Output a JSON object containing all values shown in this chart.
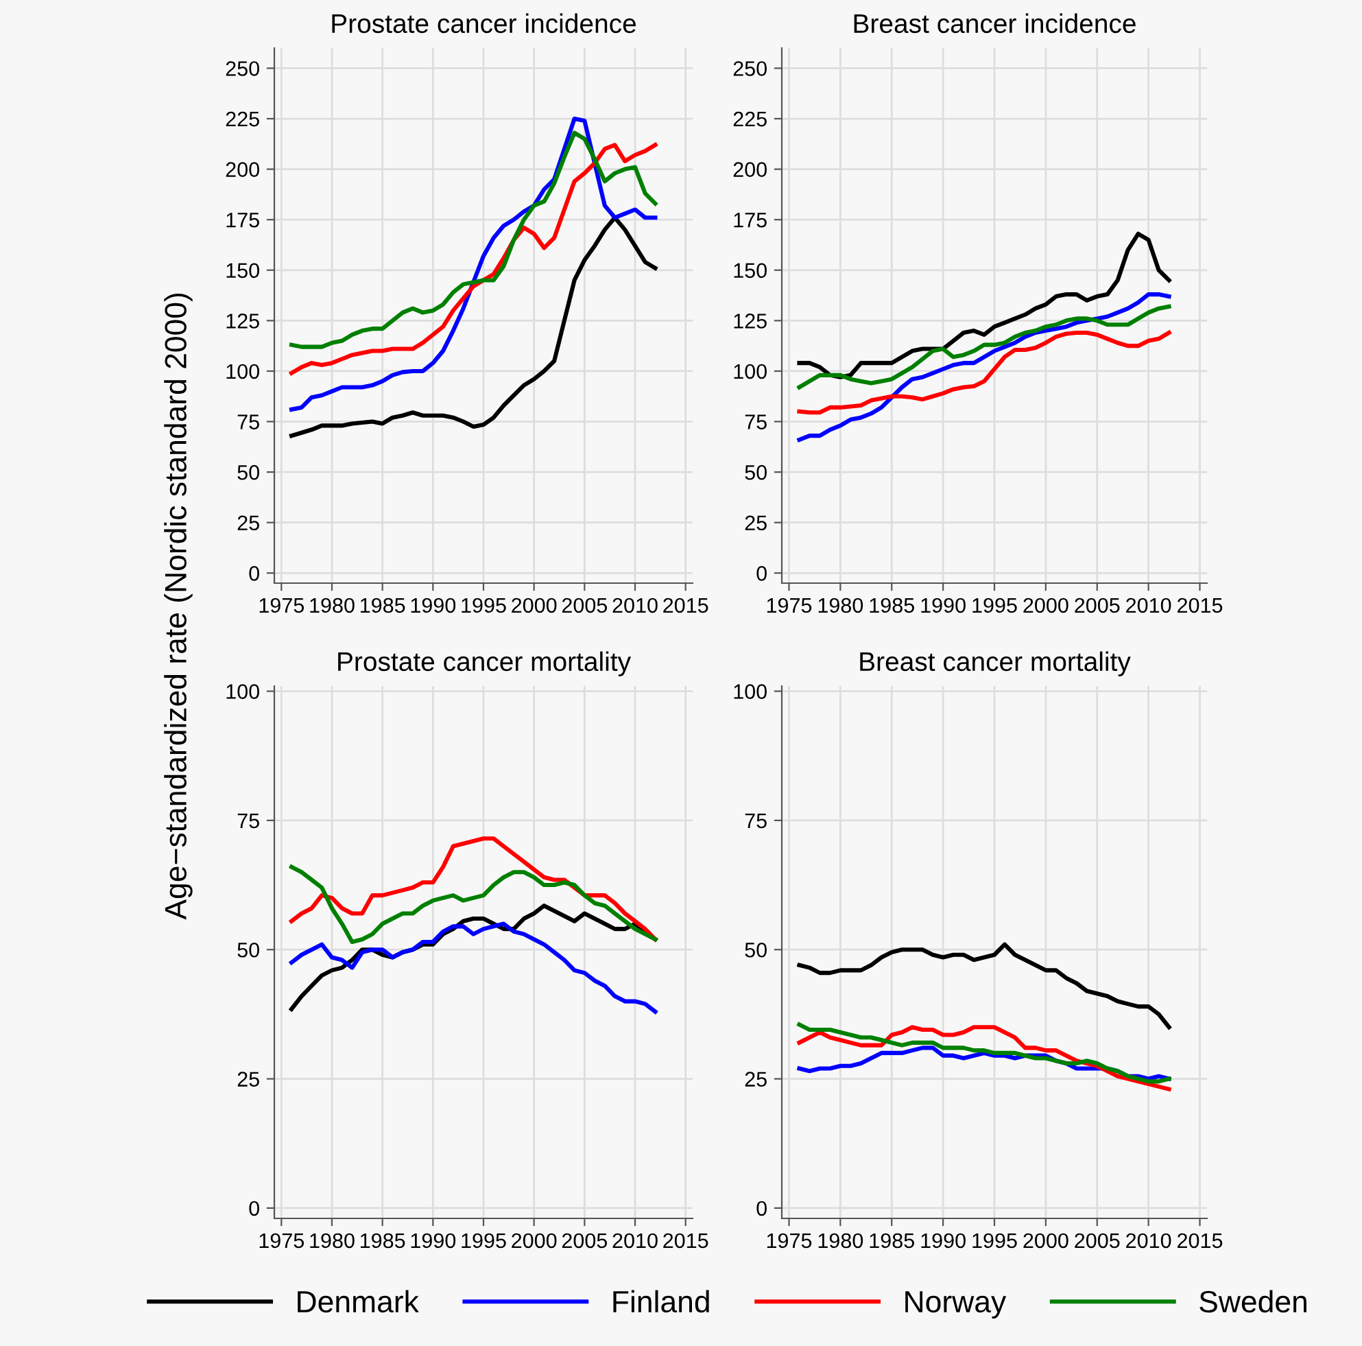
{
  "chart_data": [
    {
      "type": "line",
      "title": "Prostate cancer incidence",
      "legend": "bottom",
      "ylabel": "Age−standardized rate (Nordic standard 2000)",
      "x": [
        1976,
        1977,
        1978,
        1979,
        1980,
        1981,
        1982,
        1983,
        1984,
        1985,
        1986,
        1987,
        1988,
        1989,
        1990,
        1991,
        1992,
        1993,
        1994,
        1995,
        1996,
        1997,
        1998,
        1999,
        2000,
        2001,
        2002,
        2003,
        2004,
        2005,
        2006,
        2007,
        2008,
        2009,
        2010,
        2011,
        2012
      ],
      "xlim": [
        1974.3,
        2015.7
      ],
      "xticks": [
        1975,
        1980,
        1985,
        1990,
        1995,
        2000,
        2005,
        2010,
        2015
      ],
      "ylim": [
        -5,
        260
      ],
      "yticks": [
        0,
        25,
        50,
        75,
        100,
        125,
        150,
        175,
        200,
        225,
        250
      ],
      "grid": true,
      "series": [
        {
          "name": "Denmark",
          "color": "#000000",
          "values": [
            68,
            69.5,
            71,
            73,
            73,
            73,
            74,
            74.5,
            75,
            74,
            77,
            78,
            79.5,
            78,
            78,
            78,
            77,
            75,
            72.5,
            73.5,
            77,
            83,
            88,
            93,
            96,
            100,
            105,
            125,
            145,
            155,
            162,
            170,
            176,
            170,
            162,
            154,
            151
          ]
        },
        {
          "name": "Finland",
          "color": "#0000ff",
          "values": [
            81,
            82,
            87,
            88,
            90,
            92,
            92,
            92,
            93,
            95,
            98,
            99.5,
            100,
            100,
            104,
            110,
            120,
            131,
            144,
            157,
            166,
            172,
            175,
            179,
            182,
            190,
            195,
            210,
            225,
            224,
            203,
            182,
            176,
            178,
            180,
            176,
            176
          ]
        },
        {
          "name": "Norway",
          "color": "#ff0000",
          "values": [
            99,
            102,
            104,
            103,
            104,
            106,
            108,
            109,
            110,
            110,
            111,
            111,
            111,
            114,
            118,
            122,
            130,
            136,
            142,
            145,
            148,
            156,
            165,
            171,
            168,
            161,
            166,
            180,
            194,
            198,
            203,
            210,
            212,
            204,
            207,
            209,
            212
          ]
        },
        {
          "name": "Sweden",
          "color": "#008000",
          "values": [
            113,
            112,
            112,
            112,
            114,
            115,
            118,
            120,
            121,
            121,
            125,
            129,
            131,
            129,
            130,
            133,
            139,
            143,
            144,
            145,
            145,
            152,
            165,
            175,
            182,
            184,
            193,
            206,
            218,
            215,
            205,
            194,
            198,
            200,
            201,
            188,
            183
          ]
        }
      ]
    },
    {
      "type": "line",
      "title": "Breast cancer incidence",
      "x": [
        1976,
        1977,
        1978,
        1979,
        1980,
        1981,
        1982,
        1983,
        1984,
        1985,
        1986,
        1987,
        1988,
        1989,
        1990,
        1991,
        1992,
        1993,
        1994,
        1995,
        1996,
        1997,
        1998,
        1999,
        2000,
        2001,
        2002,
        2003,
        2004,
        2005,
        2006,
        2007,
        2008,
        2009,
        2010,
        2011,
        2012
      ],
      "xlim": [
        1974.3,
        2015.7
      ],
      "xticks": [
        1975,
        1980,
        1985,
        1990,
        1995,
        2000,
        2005,
        2010,
        2015
      ],
      "ylim": [
        -5,
        260
      ],
      "yticks": [
        0,
        25,
        50,
        75,
        100,
        125,
        150,
        175,
        200,
        225,
        250
      ],
      "grid": true,
      "series": [
        {
          "color": "#000000",
          "values": [
            104,
            104,
            102,
            98,
            97,
            98,
            104,
            104,
            104,
            104,
            107,
            110,
            111,
            111,
            111,
            115,
            119,
            120,
            118,
            122,
            124,
            126,
            128,
            131,
            133,
            137,
            138,
            138,
            135,
            137,
            138,
            145,
            160,
            168,
            165,
            150,
            145
          ]
        },
        {
          "color": "#0000ff",
          "values": [
            66,
            68,
            68,
            71,
            73,
            76,
            77,
            79,
            82,
            87,
            92,
            96,
            97,
            99,
            101,
            103,
            104,
            104,
            107,
            110,
            112,
            114,
            117,
            119,
            120,
            121,
            122,
            124,
            125,
            126,
            127,
            129,
            131,
            134,
            138,
            138,
            137
          ]
        },
        {
          "color": "#ff0000",
          "values": [
            80,
            79.5,
            79.5,
            82,
            82,
            82.5,
            83,
            85.5,
            86.5,
            87.5,
            87.5,
            87,
            86,
            87.5,
            89,
            91,
            92,
            92.5,
            95,
            101,
            107,
            110.5,
            110.5,
            111.5,
            114,
            117,
            118.5,
            119,
            119,
            118,
            116,
            114,
            112.5,
            112.5,
            115,
            116,
            119
          ]
        },
        {
          "color": "#008000",
          "values": [
            92,
            95,
            98,
            98,
            98,
            96,
            95,
            94,
            95,
            96,
            99,
            102,
            106,
            110,
            111,
            107,
            108,
            110,
            113,
            113,
            114,
            117,
            119,
            120,
            122,
            123,
            125,
            126,
            126,
            125,
            123,
            123,
            123,
            126,
            129,
            131,
            132
          ]
        }
      ]
    },
    {
      "type": "line",
      "title": "Prostate cancer mortality",
      "x": [
        1976,
        1977,
        1978,
        1979,
        1980,
        1981,
        1982,
        1983,
        1984,
        1985,
        1986,
        1987,
        1988,
        1989,
        1990,
        1991,
        1992,
        1993,
        1994,
        1995,
        1996,
        1997,
        1998,
        1999,
        2000,
        2001,
        2002,
        2003,
        2004,
        2005,
        2006,
        2007,
        2008,
        2009,
        2010,
        2011,
        2012
      ],
      "xlim": [
        1974.3,
        2015.7
      ],
      "xticks": [
        1975,
        1980,
        1985,
        1990,
        1995,
        2000,
        2005,
        2010,
        2015
      ],
      "ylim": [
        -2,
        101
      ],
      "yticks": [
        0,
        25,
        50,
        75,
        100
      ],
      "grid": true,
      "series": [
        {
          "color": "#000000",
          "values": [
            38.5,
            41,
            43,
            45,
            46,
            46.5,
            48,
            50,
            50,
            49,
            48.5,
            49.5,
            50,
            51,
            51,
            53,
            54,
            55.5,
            56,
            56,
            55,
            54,
            54,
            56,
            57,
            58.5,
            57.5,
            56.5,
            55.5,
            57,
            56,
            55,
            54,
            54,
            55,
            53.5,
            52
          ]
        },
        {
          "color": "#0000ff",
          "values": [
            47.5,
            49,
            50,
            51,
            48.5,
            48,
            46.5,
            49.5,
            50,
            50,
            48.5,
            49.5,
            50,
            51.5,
            51.5,
            53.5,
            54.5,
            54.5,
            53,
            54,
            54.5,
            55,
            53.5,
            53,
            52,
            51,
            49.5,
            48,
            46,
            45.5,
            44,
            43,
            41,
            40,
            40,
            39.5,
            38
          ]
        },
        {
          "color": "#ff0000",
          "values": [
            55.5,
            57,
            58,
            60.5,
            60,
            58,
            57,
            57,
            60.5,
            60.5,
            61,
            61.5,
            62,
            63,
            63,
            66,
            70,
            70.5,
            71,
            71.5,
            71.5,
            70,
            68.5,
            67,
            65.5,
            64,
            63.5,
            63.5,
            62,
            60.5,
            60.5,
            60.5,
            59,
            57,
            55.5,
            54,
            52
          ]
        },
        {
          "color": "#008000",
          "values": [
            66,
            65,
            63.5,
            62,
            58,
            55,
            51.5,
            52,
            53,
            55,
            56,
            57,
            57,
            58.5,
            59.5,
            60,
            60.5,
            59.5,
            60,
            60.5,
            62.5,
            64,
            65,
            65,
            64,
            62.5,
            62.5,
            63,
            62.5,
            60.5,
            59,
            58.5,
            57,
            55.5,
            54,
            53,
            52
          ]
        }
      ]
    },
    {
      "type": "line",
      "title": "Breast cancer mortality",
      "x": [
        1976,
        1977,
        1978,
        1979,
        1980,
        1981,
        1982,
        1983,
        1984,
        1985,
        1986,
        1987,
        1988,
        1989,
        1990,
        1991,
        1992,
        1993,
        1994,
        1995,
        1996,
        1997,
        1998,
        1999,
        2000,
        2001,
        2002,
        2003,
        2004,
        2005,
        2006,
        2007,
        2008,
        2009,
        2010,
        2011,
        2012
      ],
      "xlim": [
        1974.3,
        2015.7
      ],
      "xticks": [
        1975,
        1980,
        1985,
        1990,
        1995,
        2000,
        2005,
        2010,
        2015
      ],
      "ylim": [
        -2,
        101
      ],
      "yticks": [
        0,
        25,
        50,
        75,
        100
      ],
      "grid": true,
      "series": [
        {
          "color": "#000000",
          "values": [
            47,
            46.5,
            45.5,
            45.5,
            46,
            46,
            46,
            47,
            48.5,
            49.5,
            50,
            50,
            50,
            49,
            48.5,
            49,
            49,
            48,
            48.5,
            49,
            51,
            49,
            48,
            47,
            46,
            46,
            44.5,
            43.5,
            42,
            41.5,
            41,
            40,
            39.5,
            39,
            39,
            37.5,
            35
          ]
        },
        {
          "color": "#0000ff",
          "values": [
            27,
            26.5,
            27,
            27,
            27.5,
            27.5,
            28,
            29,
            30,
            30,
            30,
            30.5,
            31,
            31,
            29.5,
            29.5,
            29,
            29.5,
            30,
            29.5,
            29.5,
            29,
            29.5,
            29.5,
            29.5,
            28.5,
            28,
            27,
            27,
            27,
            27,
            26.5,
            25.5,
            25.5,
            25,
            25.5,
            25
          ]
        },
        {
          "color": "#ff0000",
          "values": [
            32,
            33,
            34,
            33,
            32.5,
            32,
            31.5,
            31.5,
            31.5,
            33.5,
            34,
            35,
            34.5,
            34.5,
            33.5,
            33.5,
            34,
            35,
            35,
            35,
            34,
            33,
            31,
            31,
            30.5,
            30.5,
            29.5,
            28.5,
            28,
            27.5,
            26.5,
            25.5,
            25,
            24.5,
            24,
            23.5,
            23
          ]
        },
        {
          "color": "#008000",
          "values": [
            35.5,
            34.5,
            34.5,
            34.5,
            34,
            33.5,
            33,
            33,
            32.5,
            32,
            31.5,
            32,
            32,
            32,
            31,
            31,
            31,
            30.5,
            30.5,
            30,
            30,
            30,
            29.5,
            29,
            29,
            28.5,
            28,
            28,
            28.5,
            28,
            27,
            26.5,
            25.5,
            25,
            24.5,
            24.5,
            25
          ]
        }
      ]
    }
  ]
}
